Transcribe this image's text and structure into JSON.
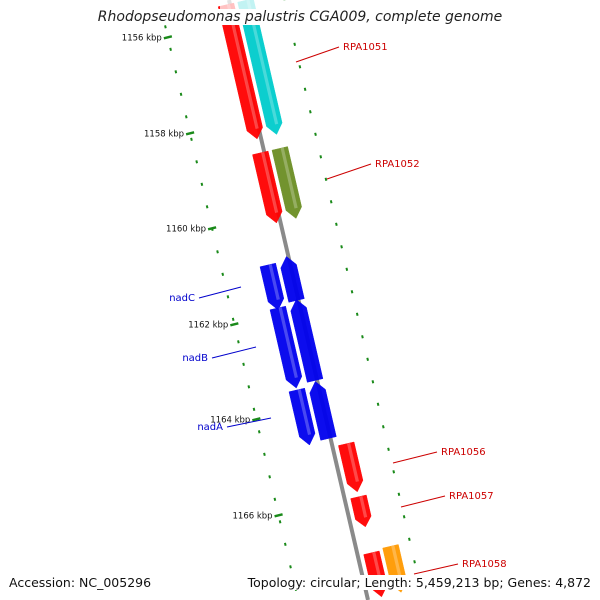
{
  "title": "Rhodopseudomonas palustris CGA009, complete genome",
  "footer": {
    "accession": "Accession: NC_005296",
    "summary": "Topology: circular; Length: 5,459,213 bp; Genes: 4,872"
  },
  "colors": {
    "backbone": "#8a8a8a",
    "tick": "#1a8a1a",
    "gene_label_red": "#cc0000",
    "gene_label_blue": "#0000cc"
  },
  "ticks": [
    {
      "label": "1156 kbp",
      "kbp": 1156
    },
    {
      "label": "1158 kbp",
      "kbp": 1158
    },
    {
      "label": "1160 kbp",
      "kbp": 1160
    },
    {
      "label": "1162 kbp",
      "kbp": 1162
    },
    {
      "label": "1164 kbp",
      "kbp": 1164
    },
    {
      "label": "1166 kbp",
      "kbp": 1166
    }
  ],
  "gene_labels": [
    {
      "name": "RPA1051",
      "color": "red"
    },
    {
      "name": "RPA1052",
      "color": "red"
    },
    {
      "name": "nadC",
      "color": "blue"
    },
    {
      "name": "nadB",
      "color": "blue"
    },
    {
      "name": "nadA",
      "color": "blue"
    },
    {
      "name": "RPA1056",
      "color": "red"
    },
    {
      "name": "RPA1057",
      "color": "red"
    },
    {
      "name": "RPA1058",
      "color": "red"
    }
  ],
  "features": [
    {
      "name": "RPA1051-gene-arrow",
      "color": "#ff0000"
    },
    {
      "name": "RPA1051-cds-arrow",
      "color": "#00cccc"
    },
    {
      "name": "RPA1052-gene-arrow",
      "color": "#ff0000"
    },
    {
      "name": "RPA1052-cds-arrow",
      "color": "#6b8e23"
    },
    {
      "name": "nadC-gene-arrow",
      "color": "#0000ee"
    },
    {
      "name": "nadC-cds-arrow",
      "color": "#0000ee"
    },
    {
      "name": "nadB-gene-arrow",
      "color": "#0000ee"
    },
    {
      "name": "nadB-cds-arrow",
      "color": "#0000ee"
    },
    {
      "name": "nadA-gene-arrow",
      "color": "#0000ee"
    },
    {
      "name": "nadA-cds-arrow",
      "color": "#0000ee"
    },
    {
      "name": "RPA1056-gene-arrow",
      "color": "#ff0000"
    },
    {
      "name": "RPA1057-gene-arrow",
      "color": "#ff0000"
    },
    {
      "name": "RPA1058-gene-arrow",
      "color": "#ff0000"
    },
    {
      "name": "RPA1058-cds-arrow",
      "color": "#ff9900"
    }
  ]
}
